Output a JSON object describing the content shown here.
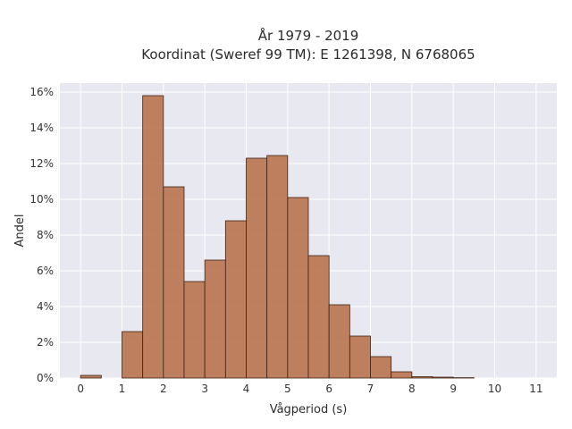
{
  "chart_data": {
    "type": "bar",
    "title_line1": "År 1979 - 2019",
    "title_line2": "Koordinat (Sweref 99 TM): E 1261398, N 6768065",
    "xlabel": "Vågperiod (s)",
    "ylabel": "Andel",
    "bin_width": 0.5,
    "bins": [
      {
        "x0": 0.0,
        "value": 0.15
      },
      {
        "x0": 0.5,
        "value": 0.0
      },
      {
        "x0": 1.0,
        "value": 2.6
      },
      {
        "x0": 1.5,
        "value": 15.8
      },
      {
        "x0": 2.0,
        "value": 10.7
      },
      {
        "x0": 2.5,
        "value": 5.4
      },
      {
        "x0": 3.0,
        "value": 6.6
      },
      {
        "x0": 3.5,
        "value": 8.8
      },
      {
        "x0": 4.0,
        "value": 12.3
      },
      {
        "x0": 4.5,
        "value": 12.45
      },
      {
        "x0": 5.0,
        "value": 10.1
      },
      {
        "x0": 5.5,
        "value": 6.85
      },
      {
        "x0": 6.0,
        "value": 4.1
      },
      {
        "x0": 6.5,
        "value": 2.35
      },
      {
        "x0": 7.0,
        "value": 1.2
      },
      {
        "x0": 7.5,
        "value": 0.35
      },
      {
        "x0": 8.0,
        "value": 0.08
      },
      {
        "x0": 8.5,
        "value": 0.05
      },
      {
        "x0": 9.0,
        "value": 0.02
      }
    ],
    "xlim": [
      -0.5,
      11.5
    ],
    "ylim": [
      0,
      16.5
    ],
    "xticks": [
      0,
      1,
      2,
      3,
      4,
      5,
      6,
      7,
      8,
      9,
      10,
      11
    ],
    "xtick_labels": [
      "0",
      "1",
      "2",
      "3",
      "4",
      "5",
      "6",
      "7",
      "8",
      "9",
      "10",
      "11"
    ],
    "yticks": [
      0,
      2,
      4,
      6,
      8,
      10,
      12,
      14,
      16
    ],
    "ytick_labels": [
      "0%",
      "2%",
      "4%",
      "6%",
      "8%",
      "10%",
      "12%",
      "14%",
      "16%"
    ],
    "grid": true,
    "colors": {
      "bar_fill": "#bb7955",
      "bar_stroke": "#3d2314",
      "plot_background": "#e8e8f0",
      "grid": "#ffffff"
    }
  }
}
